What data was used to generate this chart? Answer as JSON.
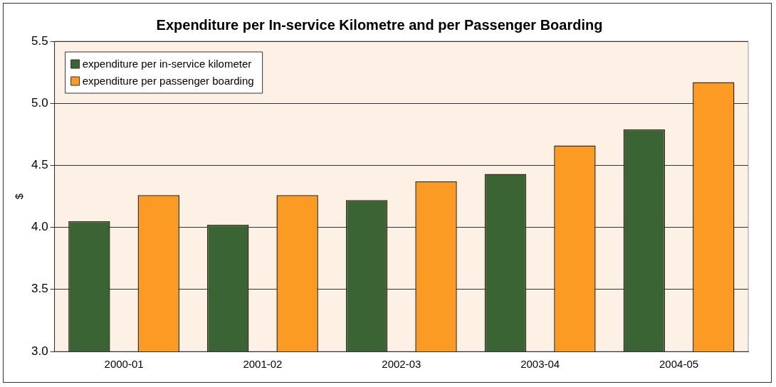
{
  "chart_data": {
    "type": "bar",
    "title": "Expenditure per In-service Kilometre and per Passenger Boarding",
    "ylabel": "$",
    "categories": [
      "2000-01",
      "2001-02",
      "2002-03",
      "2003-04",
      "2004-05"
    ],
    "series": [
      {
        "name": "expenditure per in-service kilometer",
        "color": "#3b6434",
        "values": [
          4.05,
          4.02,
          4.22,
          4.43,
          4.79
        ]
      },
      {
        "name": "expenditure per passenger boarding",
        "color": "#fb9b24",
        "values": [
          4.26,
          4.26,
          4.37,
          4.66,
          5.17
        ]
      }
    ],
    "ylim": [
      3.0,
      5.5
    ],
    "yticks": [
      {
        "value": 3.0,
        "label": "3.0"
      },
      {
        "value": 3.5,
        "label": "3.5"
      },
      {
        "value": 4.0,
        "label": "4.0"
      },
      {
        "value": 4.5,
        "label": "4.5"
      },
      {
        "value": 5.0,
        "label": "5.0"
      },
      {
        "value": 5.5,
        "label": "5.5"
      }
    ],
    "grid": "y",
    "legend": "top left"
  }
}
